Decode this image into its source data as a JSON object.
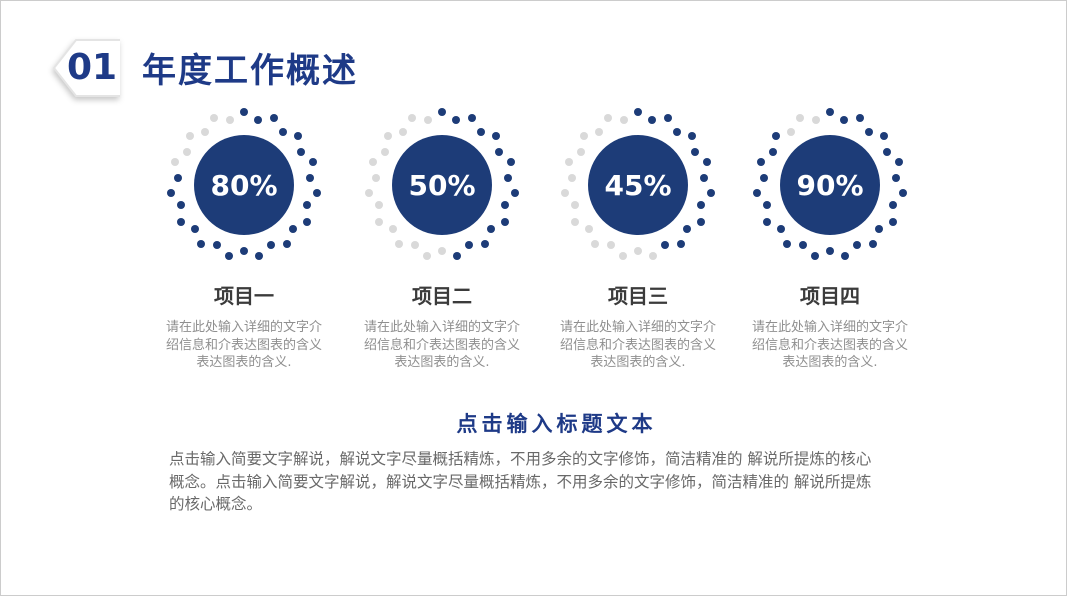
{
  "slide": {
    "section_number": "01",
    "section_title": "年度工作概述",
    "items": [
      {
        "percent": "80%",
        "value": 80,
        "title": "项目一",
        "desc": "请在此处输入详细的文字介绍信息和介表达图表的含义表达图表的含义."
      },
      {
        "percent": "50%",
        "value": 50,
        "title": "项目二",
        "desc": "请在此处输入详细的文字介绍信息和介表达图表的含义表达图表的含义."
      },
      {
        "percent": "45%",
        "value": 45,
        "title": "项目三",
        "desc": "请在此处输入详细的文字介绍信息和介表达图表的含义表达图表的含义."
      },
      {
        "percent": "90%",
        "value": 90,
        "title": "项目四",
        "desc": "请在此处输入详细的文字介绍信息和介表达图表的含义表达图表的含义."
      }
    ],
    "heading": "点击输入标题文本",
    "body": "点击输入简要文字解说，解说文字尽量概括精炼，不用多余的文字修饰，简洁精准的 解说所提炼的核心概念。点击输入简要文字解说，解说文字尽量概括精炼，不用多余的文字修饰，简洁精准的 解说所提炼的核心概念。"
  },
  "chart_data": {
    "type": "progress-circles",
    "categories": [
      "项目一",
      "项目二",
      "项目三",
      "项目四"
    ],
    "values": [
      80,
      50,
      45,
      90
    ],
    "unit": "%"
  },
  "colors": {
    "accent": "#1e3a87",
    "circle": "#1d3c78",
    "dot_inactive": "#d9d9d9",
    "text_dark": "#3b3b3b",
    "text_gray": "#8f8f8f",
    "body_gray": "#696969",
    "border": "#cccccc"
  }
}
